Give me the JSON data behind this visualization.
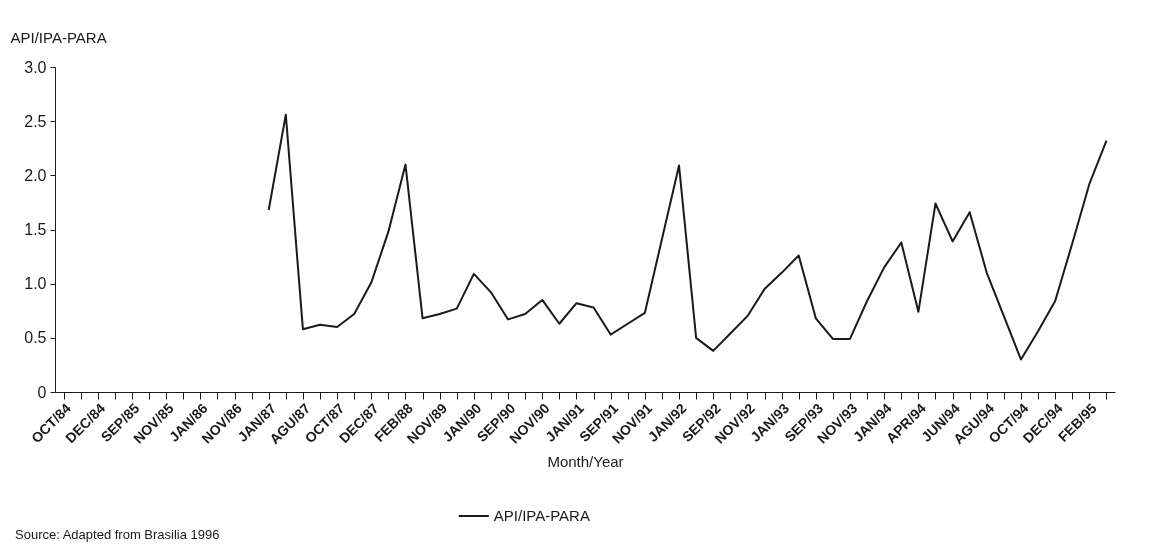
{
  "chart_data": {
    "type": "line",
    "ylabel": "API/IPA-PARA",
    "xlabel": "Month/Year",
    "categories": [
      "OCT/84",
      null,
      "DEC/84",
      null,
      "SEP/85",
      null,
      "NOV/85",
      null,
      "JAN/86",
      null,
      "NOV/86",
      null,
      "JAN/87",
      null,
      "AGU/87",
      null,
      "OCT/87",
      null,
      "DEC/87",
      null,
      "FEB/88",
      null,
      "NOV/89",
      null,
      "JAN/90",
      null,
      "SEP/90",
      null,
      "NOV/90",
      null,
      "JAN/91",
      null,
      "SEP/91",
      null,
      "NOV/91",
      null,
      "JAN/92",
      null,
      "SEP/92",
      null,
      "NOV/92",
      null,
      "JAN/93",
      null,
      "SEP/93",
      null,
      "NOV/93",
      null,
      "JAN/94",
      null,
      "APR/94",
      null,
      "JUN/94",
      null,
      "AGU/94",
      null,
      "OCT/94",
      null,
      "DEC/94",
      null,
      "FEB/95",
      null
    ],
    "series": [
      {
        "name": "API/IPA-PARA",
        "color": "#1a1a1a",
        "values": [
          null,
          null,
          null,
          null,
          null,
          null,
          null,
          null,
          null,
          null,
          null,
          null,
          1.68,
          2.56,
          0.58,
          0.62,
          0.6,
          0.72,
          1.01,
          1.48,
          2.1,
          0.68,
          0.72,
          0.77,
          1.09,
          0.92,
          0.67,
          0.72,
          0.85,
          0.63,
          0.82,
          0.78,
          0.53,
          0.63,
          0.73,
          1.41,
          2.09,
          0.5,
          0.38,
          0.54,
          0.7,
          0.95,
          1.1,
          1.26,
          0.68,
          0.49,
          0.49,
          0.84,
          1.15,
          1.38,
          0.74,
          1.74,
          1.39,
          1.66,
          1.1,
          0.7,
          0.3,
          0.56,
          0.84,
          1.37,
          1.92,
          2.32
        ]
      }
    ],
    "ylim": [
      0,
      3
    ],
    "yticks": [
      0,
      0.5,
      {
        "value": 1,
        "label": "1.0"
      },
      1.5,
      {
        "value": 2,
        "label": "2.0"
      },
      2.5,
      {
        "value": 3,
        "label": "3.0"
      }
    ],
    "grid": false,
    "legend": "bottom",
    "marker": "none",
    "line_style": "solid",
    "annotations": [
      "Source: Adapted from Brasilia 1996"
    ]
  }
}
